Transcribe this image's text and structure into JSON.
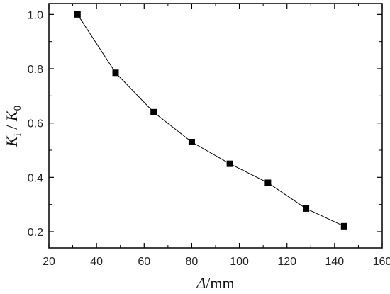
{
  "chart_data": {
    "type": "line",
    "title": "",
    "xlabel": "Δ/mm",
    "xlabel_parts": {
      "symbol": "Δ",
      "unit": "/mm"
    },
    "ylabel": "Ki / K0",
    "ylabel_parts": {
      "k1": "K",
      "sub1": "i",
      "slash": " / ",
      "k2": "K",
      "sub2": "0"
    },
    "xlim": [
      20,
      160
    ],
    "ylim": [
      0.14,
      1.04
    ],
    "xticks": [
      20,
      40,
      60,
      80,
      100,
      120,
      140,
      160
    ],
    "yticks": [
      0.2,
      0.4,
      0.6,
      0.8,
      1.0
    ],
    "xtick_labels": [
      "20",
      "40",
      "60",
      "80",
      "100",
      "120",
      "140",
      "160"
    ],
    "ytick_labels": [
      "0.2",
      "0.4",
      "0.6",
      "0.8",
      "1.0"
    ],
    "grid": false,
    "marker": "square",
    "color": "#000000",
    "series": [
      {
        "x": [
          32,
          48,
          64,
          80,
          96,
          112,
          128,
          144
        ],
        "y": [
          1.0,
          0.785,
          0.64,
          0.53,
          0.45,
          0.38,
          0.285,
          0.22
        ]
      }
    ]
  }
}
